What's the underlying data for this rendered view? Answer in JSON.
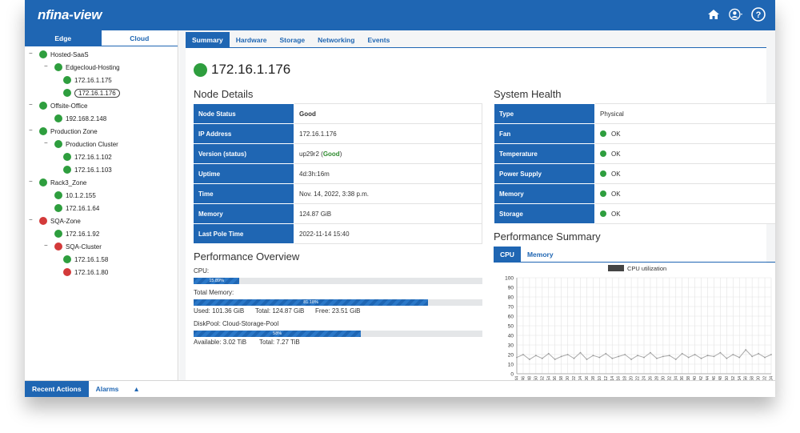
{
  "app": {
    "logo": "nfina-view"
  },
  "top_icons": [
    "home-icon",
    "user-icon",
    "help-icon"
  ],
  "left": {
    "tabs": [
      {
        "label": "Edge",
        "active": true
      },
      {
        "label": "Cloud",
        "active": false
      }
    ],
    "tree": [
      {
        "label": "Hosted-SaaS",
        "status": "green",
        "toggle": "−"
      },
      {
        "label": "Edgecloud-Hosting",
        "status": "green",
        "toggle": "−"
      },
      {
        "label": "172.16.1.175",
        "status": "green",
        "toggle": ""
      },
      {
        "label": "172.16.1.176",
        "status": "green",
        "toggle": "",
        "selected": true
      },
      {
        "label": "Offsite-Office",
        "status": "green",
        "toggle": "−"
      },
      {
        "label": "192.168.2.148",
        "status": "green",
        "toggle": ""
      },
      {
        "label": "Production Zone",
        "status": "green",
        "toggle": "−"
      },
      {
        "label": "Production Cluster",
        "status": "green",
        "toggle": "−"
      },
      {
        "label": "172.16.1.102",
        "status": "green",
        "toggle": ""
      },
      {
        "label": "172.16.1.103",
        "status": "green",
        "toggle": ""
      },
      {
        "label": "Rack3_Zone",
        "status": "green",
        "toggle": "−"
      },
      {
        "label": "10.1.2.155",
        "status": "green",
        "toggle": ""
      },
      {
        "label": "172.16.1.64",
        "status": "green",
        "toggle": ""
      },
      {
        "label": "SQA-Zone",
        "status": "red",
        "toggle": "−"
      },
      {
        "label": "172.16.1.92",
        "status": "green",
        "toggle": ""
      },
      {
        "label": "SQA-Cluster",
        "status": "red",
        "toggle": "−"
      },
      {
        "label": "172.16.1.58",
        "status": "green",
        "toggle": ""
      },
      {
        "label": "172.16.1.80",
        "status": "red",
        "toggle": ""
      }
    ]
  },
  "main_tabs": [
    {
      "label": "Summary",
      "active": true
    },
    {
      "label": "Hardware",
      "active": false
    },
    {
      "label": "Storage",
      "active": false
    },
    {
      "label": "Networking",
      "active": false
    },
    {
      "label": "Events",
      "active": false
    }
  ],
  "host": "172.16.1.176",
  "node_details": {
    "title": "Node Details",
    "rows": [
      {
        "key": "Node Status",
        "value": "Good"
      },
      {
        "key": "IP Address",
        "value": "172.16.1.176"
      },
      {
        "key": "Version (status)",
        "value": "up29r2",
        "status": "Good"
      },
      {
        "key": "Uptime",
        "value": "4d:3h:16m"
      },
      {
        "key": "Time",
        "value": "Nov. 14, 2022, 3:38 p.m."
      },
      {
        "key": "Memory",
        "value": "124.87 GiB"
      },
      {
        "key": "Last Pole Time",
        "value": "2022-11-14 15:40"
      }
    ]
  },
  "system_health": {
    "title": "System Health",
    "rows": [
      {
        "key": "Type",
        "value": "Physical",
        "dot": false
      },
      {
        "key": "Fan",
        "value": "OK",
        "dot": true
      },
      {
        "key": "Temperature",
        "value": "OK",
        "dot": true
      },
      {
        "key": "Power Supply",
        "value": "OK",
        "dot": true
      },
      {
        "key": "Memory",
        "value": "OK",
        "dot": true
      },
      {
        "key": "Storage",
        "value": "OK",
        "dot": true
      }
    ]
  },
  "performance_overview": {
    "title": "Performance Overview",
    "cpu": {
      "label": "CPU:",
      "percent": 15.89,
      "text": "15.89%"
    },
    "memory": {
      "label": "Total Memory:",
      "percent": 81.18,
      "text": "81.18%",
      "used": "Used: 101.36 GiB",
      "total": "Total: 124.87 GiB",
      "free": "Free: 23.51 GiB"
    },
    "diskpool": {
      "label": "DiskPool: Cloud-Storage-Pool",
      "percent": 58,
      "text": "58%",
      "available": "Available: 3.02 TiB",
      "total": "Total: 7.27 TiB"
    }
  },
  "performance_summary": {
    "title": "Performance Summary",
    "tabs": [
      {
        "label": "CPU",
        "active": true
      },
      {
        "label": "Memory",
        "active": false
      }
    ]
  },
  "chart_data": {
    "type": "line",
    "legend": "CPU utilization",
    "ylim": [
      0,
      100
    ],
    "yticks": [
      0,
      10,
      20,
      30,
      40,
      50,
      60,
      70,
      80,
      90,
      100
    ],
    "x": [
      "15:44",
      "15:46",
      "15:48",
      "15:50",
      "15:52",
      "15:54",
      "15:56",
      "15:58",
      "16:00",
      "16:02",
      "16:04",
      "16:06",
      "16:08",
      "16:10",
      "16:12",
      "16:14",
      "16:16",
      "16:18",
      "16:20",
      "16:22",
      "16:24",
      "16:26",
      "16:28",
      "16:30",
      "16:32",
      "16:34",
      "16:36",
      "16:38",
      "16:40",
      "16:42",
      "16:44",
      "16:46",
      "16:48",
      "16:50",
      "16:52",
      "16:54",
      "16:56",
      "16:58",
      "17:00",
      "17:02",
      "17:04"
    ],
    "series": [
      {
        "name": "CPU utilization",
        "values": [
          17,
          20,
          15,
          19,
          16,
          21,
          15,
          18,
          20,
          16,
          22,
          15,
          19,
          17,
          21,
          16,
          18,
          20,
          15,
          19,
          17,
          22,
          16,
          18,
          19,
          15,
          21,
          17,
          20,
          16,
          19,
          18,
          22,
          16,
          20,
          17,
          25,
          18,
          21,
          17,
          20
        ]
      }
    ]
  },
  "bottom_tabs": [
    {
      "label": "Recent Actions",
      "active": true
    },
    {
      "label": "Alarms",
      "active": false
    },
    {
      "label": "▲",
      "active": false
    }
  ]
}
